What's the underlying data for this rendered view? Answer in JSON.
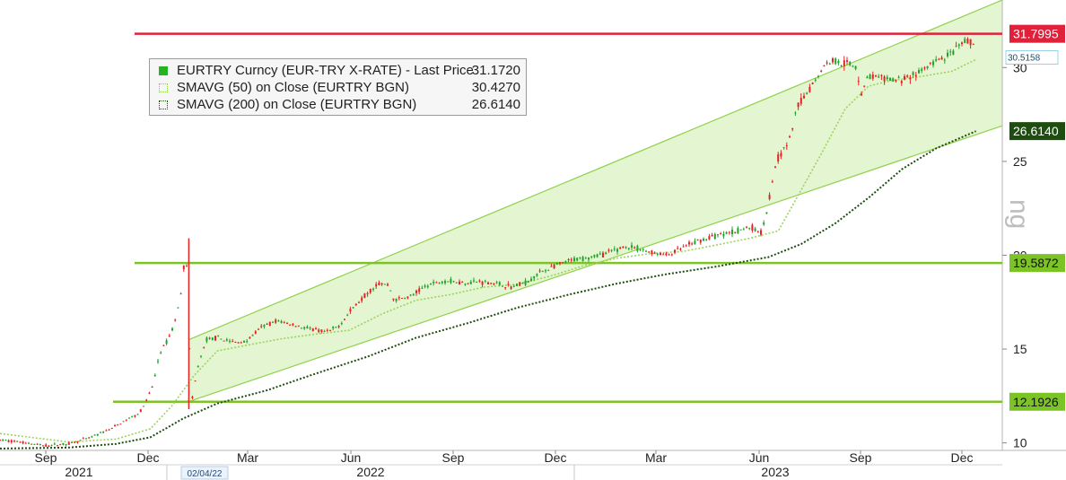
{
  "legend": {
    "price_label": "EURTRY Curncy (EUR-TRY X-RATE) - Last Price",
    "price_value": "31.1720",
    "ma50_label": "SMAVG (50)  on Close (EURTRY BGN)",
    "ma50_value": "30.4270",
    "ma200_label": "SMAVG (200)  on Close (EURTRY BGN)",
    "ma200_value": "26.6140"
  },
  "date_marker": "02/04/22",
  "watermark": "ng",
  "colors": {
    "up_candle": "#22a22a",
    "down_candle": "#e52222",
    "ma50": "#9bd45a",
    "ma200": "#1e4d10",
    "channel_fill": "#e4f5d2",
    "channel_line": "#8fd24a",
    "green_level": "#7cc326",
    "red_level": "#e0213a"
  },
  "chart_data": {
    "type": "candlestick",
    "title": "",
    "y_axis": {
      "position": "right",
      "ylim": [
        9.6,
        33.6
      ],
      "ticks": [
        10,
        15,
        20,
        25,
        30
      ]
    },
    "x_axis": {
      "month_ticks": [
        "Sep",
        "Dec",
        "Mar",
        "Jun",
        "Sep",
        "Dec",
        "Mar",
        "Jun",
        "Sep",
        "Dec"
      ],
      "year_labels": [
        "2021",
        "2022",
        "2023"
      ]
    },
    "horizontal_levels": [
      {
        "value": 31.7995,
        "label": "31.7995",
        "color": "red"
      },
      {
        "value": 19.5872,
        "label": "19.5872",
        "color": "green"
      },
      {
        "value": 12.1926,
        "label": "12.1926",
        "color": "green"
      }
    ],
    "last_value_labels": [
      {
        "value": 30.5158,
        "label": "30.5158"
      },
      {
        "value": 26.614,
        "label": "26.6140"
      }
    ],
    "channel": {
      "upper_line": [
        [
          "2021-12-20",
          15.5
        ],
        [
          "2023-12-31",
          33.6
        ]
      ],
      "lower_line": [
        [
          "2021-12-20",
          12.2
        ],
        [
          "2023-12-31",
          26.9
        ]
      ]
    },
    "series": [
      {
        "name": "EURTRY Curncy (EUR-TRY X-RATE) - Last Price",
        "style": "candles",
        "points": [
          [
            "2021-07-01",
            10.15
          ],
          [
            "2021-07-20",
            10.05
          ],
          [
            "2021-08-10",
            9.85
          ],
          [
            "2021-09-01",
            9.95
          ],
          [
            "2021-09-20",
            10.25
          ],
          [
            "2021-10-10",
            10.75
          ],
          [
            "2021-10-25",
            11.25
          ],
          [
            "2021-11-05",
            11.6
          ],
          [
            "2021-11-12",
            12.3
          ],
          [
            "2021-11-18",
            13.2
          ],
          [
            "2021-11-23",
            14.7
          ],
          [
            "2021-11-30",
            15.4
          ],
          [
            "2021-12-06",
            16.2
          ],
          [
            "2021-12-10",
            17.1
          ],
          [
            "2021-12-14",
            18.5
          ],
          [
            "2021-12-17",
            20.3
          ],
          [
            "2021-12-20",
            18.0
          ],
          [
            "2021-12-21",
            13.2
          ],
          [
            "2021-12-23",
            12.3
          ],
          [
            "2021-12-28",
            14.0
          ],
          [
            "2022-01-05",
            15.5
          ],
          [
            "2022-01-15",
            15.6
          ],
          [
            "2022-01-30",
            15.35
          ],
          [
            "2022-02-10",
            15.4
          ],
          [
            "2022-02-25",
            16.2
          ],
          [
            "2022-03-10",
            16.5
          ],
          [
            "2022-03-25",
            16.3
          ],
          [
            "2022-04-10",
            16.05
          ],
          [
            "2022-04-25",
            15.9
          ],
          [
            "2022-05-05",
            16.2
          ],
          [
            "2022-05-20",
            17.3
          ],
          [
            "2022-06-01",
            18.0
          ],
          [
            "2022-06-10",
            18.5
          ],
          [
            "2022-06-20",
            18.4
          ],
          [
            "2022-06-25",
            17.6
          ],
          [
            "2022-07-10",
            17.8
          ],
          [
            "2022-07-25",
            18.4
          ],
          [
            "2022-08-10",
            18.65
          ],
          [
            "2022-08-25",
            18.55
          ],
          [
            "2022-09-10",
            18.6
          ],
          [
            "2022-09-25",
            18.5
          ],
          [
            "2022-10-10",
            18.3
          ],
          [
            "2022-10-25",
            18.6
          ],
          [
            "2022-11-05",
            19.1
          ],
          [
            "2022-11-20",
            19.45
          ],
          [
            "2022-12-05",
            19.75
          ],
          [
            "2022-12-20",
            19.9
          ],
          [
            "2023-01-05",
            20.1
          ],
          [
            "2023-01-20",
            20.45
          ],
          [
            "2023-02-01",
            20.35
          ],
          [
            "2023-02-15",
            20.15
          ],
          [
            "2023-03-01",
            20.0
          ],
          [
            "2023-03-15",
            20.4
          ],
          [
            "2023-03-31",
            20.8
          ],
          [
            "2023-04-15",
            21.05
          ],
          [
            "2023-04-30",
            21.25
          ],
          [
            "2023-05-15",
            21.5
          ],
          [
            "2023-05-25",
            21.2
          ],
          [
            "2023-05-31",
            22.5
          ],
          [
            "2023-06-08",
            25.0
          ],
          [
            "2023-06-20",
            26.1
          ],
          [
            "2023-06-28",
            28.0
          ],
          [
            "2023-07-10",
            29.0
          ],
          [
            "2023-07-20",
            30.0
          ],
          [
            "2023-07-28",
            30.4
          ],
          [
            "2023-08-10",
            30.25
          ],
          [
            "2023-08-20",
            30.0
          ],
          [
            "2023-08-25",
            28.6
          ],
          [
            "2023-08-31",
            29.6
          ],
          [
            "2023-09-15",
            29.35
          ],
          [
            "2023-09-30",
            29.35
          ],
          [
            "2023-10-15",
            29.7
          ],
          [
            "2023-10-31",
            30.3
          ],
          [
            "2023-11-15",
            30.7
          ],
          [
            "2023-11-25",
            31.3
          ],
          [
            "2023-12-01",
            31.4
          ],
          [
            "2023-12-07",
            31.17
          ]
        ]
      },
      {
        "name": "SMAVG (50)  on Close (EURTRY BGN)",
        "style": "dotted",
        "points": [
          [
            "2021-07-01",
            10.5
          ],
          [
            "2021-09-01",
            10.05
          ],
          [
            "2021-10-15",
            10.2
          ],
          [
            "2021-11-15",
            10.75
          ],
          [
            "2021-12-05",
            12.0
          ],
          [
            "2021-12-25",
            13.6
          ],
          [
            "2022-01-15",
            14.9
          ],
          [
            "2022-02-15",
            15.25
          ],
          [
            "2022-03-15",
            15.55
          ],
          [
            "2022-04-15",
            15.8
          ],
          [
            "2022-05-15",
            16.0
          ],
          [
            "2022-06-15",
            16.9
          ],
          [
            "2022-07-15",
            17.6
          ],
          [
            "2022-08-15",
            17.9
          ],
          [
            "2022-09-15",
            18.3
          ],
          [
            "2022-10-15",
            18.45
          ],
          [
            "2022-11-15",
            18.9
          ],
          [
            "2022-12-15",
            19.45
          ],
          [
            "2023-01-15",
            19.85
          ],
          [
            "2023-02-15",
            20.1
          ],
          [
            "2023-03-15",
            20.2
          ],
          [
            "2023-04-15",
            20.55
          ],
          [
            "2023-05-15",
            20.9
          ],
          [
            "2023-06-10",
            21.3
          ],
          [
            "2023-07-01",
            23.5
          ],
          [
            "2023-07-20",
            25.5
          ],
          [
            "2023-08-10",
            27.8
          ],
          [
            "2023-08-31",
            29.0
          ],
          [
            "2023-09-20",
            29.3
          ],
          [
            "2023-10-15",
            29.5
          ],
          [
            "2023-11-15",
            29.8
          ],
          [
            "2023-12-07",
            30.43
          ]
        ]
      },
      {
        "name": "SMAVG (200)  on Close (EURTRY BGN)",
        "style": "dotted",
        "points": [
          [
            "2021-07-01",
            9.7
          ],
          [
            "2021-09-01",
            9.75
          ],
          [
            "2021-10-15",
            9.95
          ],
          [
            "2021-11-15",
            10.3
          ],
          [
            "2021-12-15",
            11.3
          ],
          [
            "2022-01-15",
            12.1
          ],
          [
            "2022-03-01",
            12.8
          ],
          [
            "2022-04-15",
            13.7
          ],
          [
            "2022-06-01",
            14.6
          ],
          [
            "2022-07-15",
            15.6
          ],
          [
            "2022-09-01",
            16.4
          ],
          [
            "2022-10-15",
            17.2
          ],
          [
            "2022-12-01",
            17.9
          ],
          [
            "2023-01-15",
            18.5
          ],
          [
            "2023-03-01",
            19.0
          ],
          [
            "2023-04-15",
            19.4
          ],
          [
            "2023-06-01",
            19.9
          ],
          [
            "2023-07-01",
            20.6
          ],
          [
            "2023-08-01",
            21.7
          ],
          [
            "2023-09-01",
            23.1
          ],
          [
            "2023-10-01",
            24.6
          ],
          [
            "2023-11-01",
            25.7
          ],
          [
            "2023-12-07",
            26.61
          ]
        ]
      }
    ]
  }
}
